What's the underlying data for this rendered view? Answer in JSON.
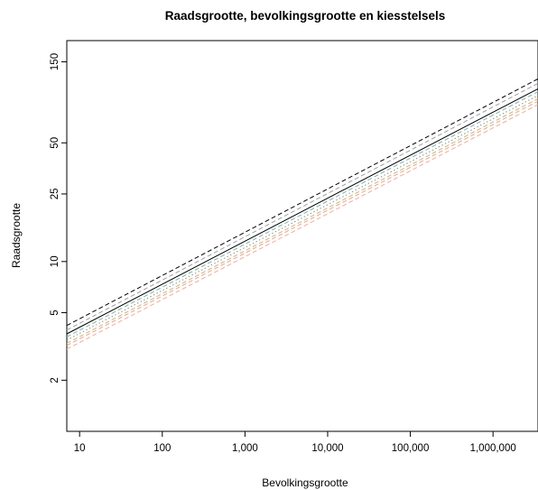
{
  "chart_data": {
    "type": "line",
    "title": "Raadsgrootte, bevolkingsgrootte en kiesstelsels",
    "xlabel": "Bevolkingsgrootte",
    "ylabel": "Raadsgrootte",
    "x_scale": "log",
    "y_scale": "log",
    "xlim": [
      7,
      3500000
    ],
    "ylim": [
      1.0,
      200
    ],
    "x_ticks": [
      10,
      100,
      1000,
      10000,
      100000,
      1000000
    ],
    "x_tick_labels": [
      "10",
      "100",
      "1,000",
      "10,000",
      "100,000",
      "1,000,000"
    ],
    "y_ticks": [
      2,
      5,
      10,
      25,
      50,
      150
    ],
    "y_tick_labels": [
      "2",
      "5",
      "10",
      "25",
      "50",
      "150"
    ],
    "grid": false,
    "legend": "none",
    "series": [
      {
        "x": [
          7,
          3500000
        ],
        "y": [
          4.2,
          119
        ],
        "color": "#000000",
        "style": "dashed"
      },
      {
        "x": [
          7,
          3500000
        ],
        "y": [
          3.95,
          112
        ],
        "color": "#9aa0ab",
        "style": "dashed"
      },
      {
        "x": [
          7,
          3500000
        ],
        "y": [
          3.75,
          104
        ],
        "color": "#000000",
        "style": "solid"
      },
      {
        "x": [
          7,
          3500000
        ],
        "y": [
          3.6,
          100
        ],
        "color": "#7fb5a5",
        "style": "dashed"
      },
      {
        "x": [
          7,
          3500000
        ],
        "y": [
          3.45,
          95
        ],
        "color": "#8a8f99",
        "style": "dotted"
      },
      {
        "x": [
          7,
          3500000
        ],
        "y": [
          3.3,
          91
        ],
        "color": "#c7b77a",
        "style": "dashed"
      },
      {
        "x": [
          7,
          3500000
        ],
        "y": [
          3.2,
          88
        ],
        "color": "#e7a58e",
        "style": "dashed"
      },
      {
        "x": [
          7,
          3500000
        ],
        "y": [
          3.05,
          84
        ],
        "color": "#ecae98",
        "style": "dashed"
      }
    ]
  }
}
